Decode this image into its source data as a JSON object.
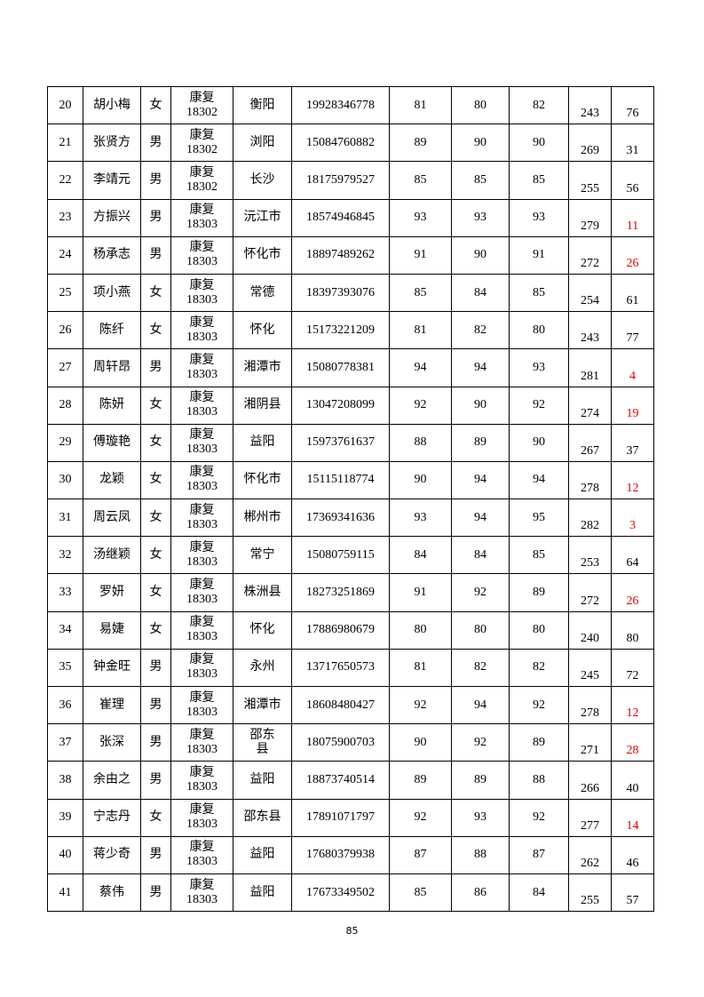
{
  "table": {
    "rows": [
      [
        "20",
        "胡小梅",
        "女",
        "康复\n18302",
        "衡阳",
        "19928346778",
        "81",
        "80",
        "82",
        "243",
        "76"
      ],
      [
        "21",
        "张贤方",
        "男",
        "康复\n18302",
        "浏阳",
        "15084760882",
        "89",
        "90",
        "90",
        "269",
        "31"
      ],
      [
        "22",
        "李靖元",
        "男",
        "康复\n18302",
        "长沙",
        "18175979527",
        "85",
        "85",
        "85",
        "255",
        "56"
      ],
      [
        "23",
        "方振兴",
        "男",
        "康复\n18303",
        "沅江市",
        "18574946845",
        "93",
        "93",
        "93",
        "279",
        "11"
      ],
      [
        "24",
        "杨承志",
        "男",
        "康复\n18303",
        "怀化市",
        "18897489262",
        "91",
        "90",
        "91",
        "272",
        "26"
      ],
      [
        "25",
        "项小燕",
        "女",
        "康复\n18303",
        "常德",
        "18397393076",
        "85",
        "84",
        "85",
        "254",
        "61"
      ],
      [
        "26",
        "陈纤",
        "女",
        "康复\n18303",
        "怀化",
        "15173221209",
        "81",
        "82",
        "80",
        "243",
        "77"
      ],
      [
        "27",
        "周轩昂",
        "男",
        "康复\n18303",
        "湘潭市",
        "15080778381",
        "94",
        "94",
        "93",
        "281",
        "4"
      ],
      [
        "28",
        "陈妍",
        "女",
        "康复\n18303",
        "湘阴县",
        "13047208099",
        "92",
        "90",
        "92",
        "274",
        "19"
      ],
      [
        "29",
        "傅璇艳",
        "女",
        "康复\n18303",
        "益阳",
        "15973761637",
        "88",
        "89",
        "90",
        "267",
        "37"
      ],
      [
        "30",
        "龙颖",
        "女",
        "康复\n18303",
        "怀化市",
        "15115118774",
        "90",
        "94",
        "94",
        "278",
        "12"
      ],
      [
        "31",
        "周云凤",
        "女",
        "康复\n18303",
        "郴州市",
        "17369341636",
        "93",
        "94",
        "95",
        "282",
        "3"
      ],
      [
        "32",
        "汤继颖",
        "女",
        "康复\n18303",
        "常宁",
        "15080759115",
        "84",
        "84",
        "85",
        "253",
        "64"
      ],
      [
        "33",
        "罗妍",
        "女",
        "康复\n18303",
        "株洲县",
        "18273251869",
        "91",
        "92",
        "89",
        "272",
        "26"
      ],
      [
        "34",
        "易婕",
        "女",
        "康复\n18303",
        "怀化",
        "17886980679",
        "80",
        "80",
        "80",
        "240",
        "80"
      ],
      [
        "35",
        "钟金旺",
        "男",
        "康复\n18303",
        "永州",
        "13717650573",
        "81",
        "82",
        "82",
        "245",
        "72"
      ],
      [
        "36",
        "崔理",
        "男",
        "康复\n18303",
        "湘潭市",
        "18608480427",
        "92",
        "94",
        "92",
        "278",
        "12"
      ],
      [
        "37",
        "张深",
        "男",
        "康复\n18303",
        "邵东\n县",
        "18075900703",
        "90",
        "92",
        "89",
        "271",
        "28"
      ],
      [
        "38",
        "余由之",
        "男",
        "康复\n18303",
        "益阳",
        "18873740514",
        "89",
        "89",
        "88",
        "266",
        "40"
      ],
      [
        "39",
        "宁志丹",
        "女",
        "康复\n18303",
        "邵东县",
        "17891071797",
        "92",
        "93",
        "92",
        "277",
        "14"
      ],
      [
        "40",
        "蒋少奇",
        "男",
        "康复\n18303",
        "益阳",
        "17680379938",
        "87",
        "88",
        "87",
        "262",
        "46"
      ],
      [
        "41",
        "蔡伟",
        "男",
        "康复\n18303",
        "益阳",
        "17673349502",
        "85",
        "86",
        "84",
        "255",
        "57"
      ]
    ],
    "rank_colors": [
      "#000000",
      "#000000",
      "#000000",
      "#e00000",
      "#e00000",
      "#000000",
      "#000000",
      "#e00000",
      "#e00000",
      "#000000",
      "#e00000",
      "#e00000",
      "#000000",
      "#e00000",
      "#000000",
      "#000000",
      "#e00000",
      "#e00000",
      "#000000",
      "#e00000",
      "#000000",
      "#000000"
    ]
  },
  "page_number": "85"
}
